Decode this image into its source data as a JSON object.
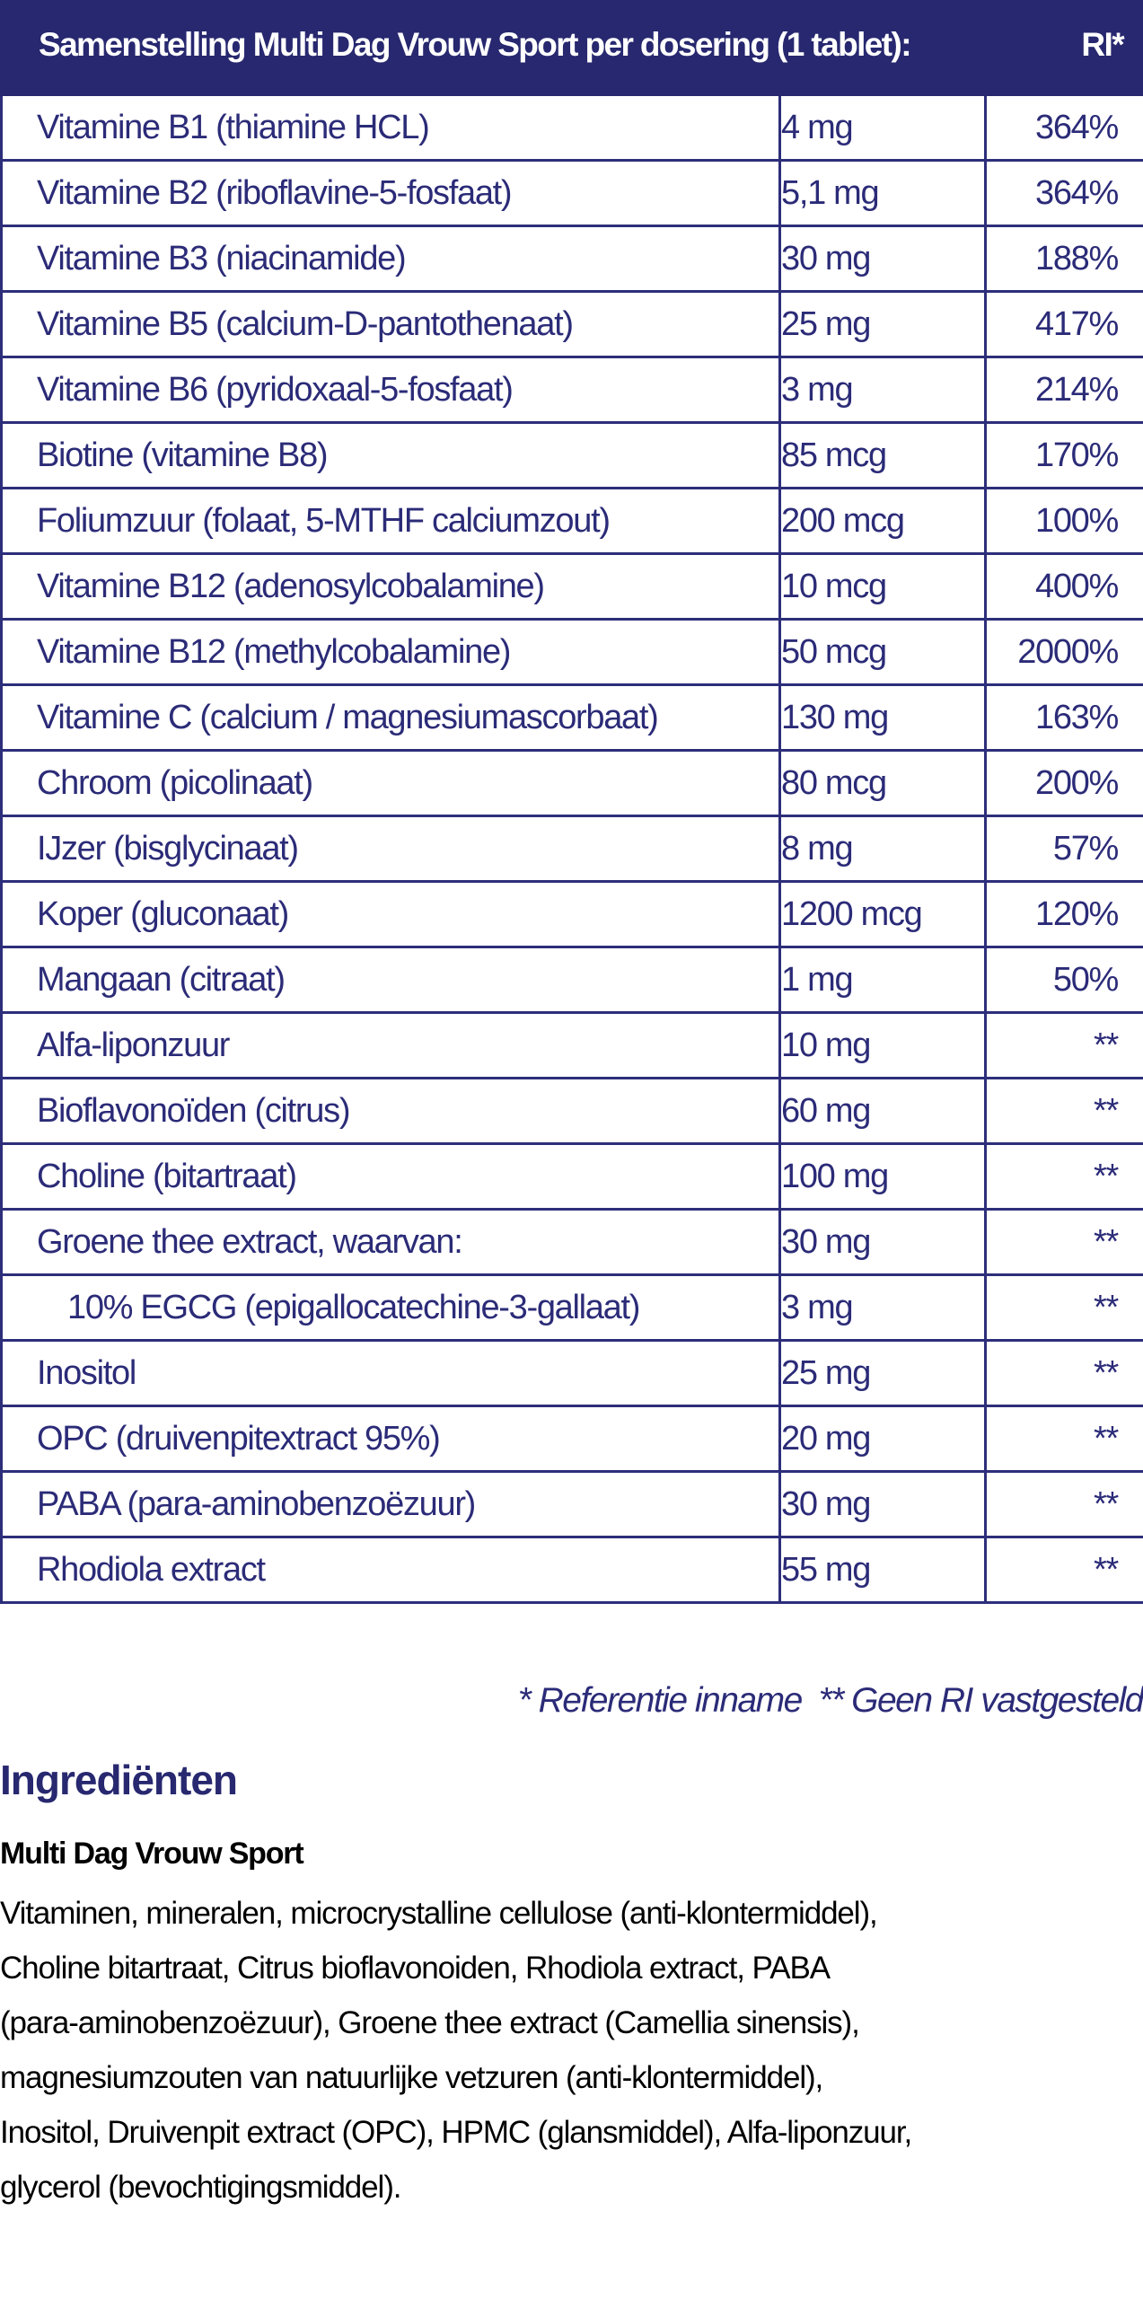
{
  "table": {
    "header_title": "Samenstelling Multi Dag Vrouw Sport per dosering (1 tablet):",
    "header_ri": "RI*",
    "rows": [
      {
        "name": "Vitamine B1 (thiamine HCL)",
        "amount": "4 mg",
        "ri": "364%"
      },
      {
        "name": "Vitamine B2 (riboflavine-5-fosfaat)",
        "amount": "5,1 mg",
        "ri": "364%"
      },
      {
        "name": "Vitamine B3 (niacinamide)",
        "amount": "30 mg",
        "ri": "188%"
      },
      {
        "name": "Vitamine B5 (calcium-D-pantothenaat)",
        "amount": "25 mg",
        "ri": "417%"
      },
      {
        "name": "Vitamine B6 (pyridoxaal-5-fosfaat)",
        "amount": "3 mg",
        "ri": "214%"
      },
      {
        "name": "Biotine (vitamine B8)",
        "amount": "85 mcg",
        "ri": "170%"
      },
      {
        "name": "Foliumzuur (folaat, 5-MTHF calciumzout)",
        "amount": "200 mcg",
        "ri": "100%"
      },
      {
        "name": "Vitamine B12 (adenosylcobalamine)",
        "amount": "10 mcg",
        "ri": "400%"
      },
      {
        "name": "Vitamine B12 (methylcobalamine)",
        "amount": "50 mcg",
        "ri": "2000%"
      },
      {
        "name": "Vitamine C (calcium / magnesiumascorbaat)",
        "amount": "130 mg",
        "ri": "163%"
      },
      {
        "name": "Chroom (picolinaat)",
        "amount": "80 mcg",
        "ri": "200%"
      },
      {
        "name": "IJzer (bisglycinaat)",
        "amount": "8 mg",
        "ri": "57%"
      },
      {
        "name": "Koper (gluconaat)",
        "amount": "1200 mcg",
        "ri": "120%"
      },
      {
        "name": "Mangaan (citraat)",
        "amount": "1 mg",
        "ri": "50%"
      },
      {
        "name": "Alfa-liponzuur",
        "amount": "10 mg",
        "ri": "**"
      },
      {
        "name": "Bioflavonoïden (citrus)",
        "amount": "60 mg",
        "ri": "**"
      },
      {
        "name": "Choline (bitartraat)",
        "amount": "100 mg",
        "ri": "**"
      },
      {
        "name": "Groene thee extract, waarvan:",
        "amount": "30 mg",
        "ri": "**"
      },
      {
        "name": "10% EGCG (epigallocatechine-3-gallaat)",
        "amount": "3 mg",
        "ri": "**",
        "indent": true
      },
      {
        "name": "Inositol",
        "amount": "25 mg",
        "ri": "**"
      },
      {
        "name": "OPC (druivenpitextract 95%)",
        "amount": "20 mg",
        "ri": "**"
      },
      {
        "name": "PABA (para-aminobenzoëzuur)",
        "amount": "30 mg",
        "ri": "**"
      },
      {
        "name": "Rhodiola extract",
        "amount": "55 mg",
        "ri": "**"
      }
    ]
  },
  "footnote": "* Referentie inname  ** Geen RI vastgesteld",
  "ingredients": {
    "title": "Ingrediënten",
    "product": "Multi Dag Vrouw Sport",
    "lines": [
      "Vitaminen, mineralen, microcrystalline cellulose (anti-klontermiddel),",
      "Choline bitartraat, Citrus bioflavonoiden, Rhodiola extract, PABA",
      "(para-aminobenzoëzuur), Groene thee extract (Camellia sinensis),",
      "magnesiumzouten van natuurlijke vetzuren (anti-klontermiddel),",
      "Inositol, Druivenpit extract (OPC), HPMC (glansmiddel), Alfa-liponzuur,",
      "glycerol (bevochtigingsmiddel)."
    ]
  },
  "colors": {
    "brand_navy": "#27286f",
    "table_text": "#2b2b78"
  }
}
